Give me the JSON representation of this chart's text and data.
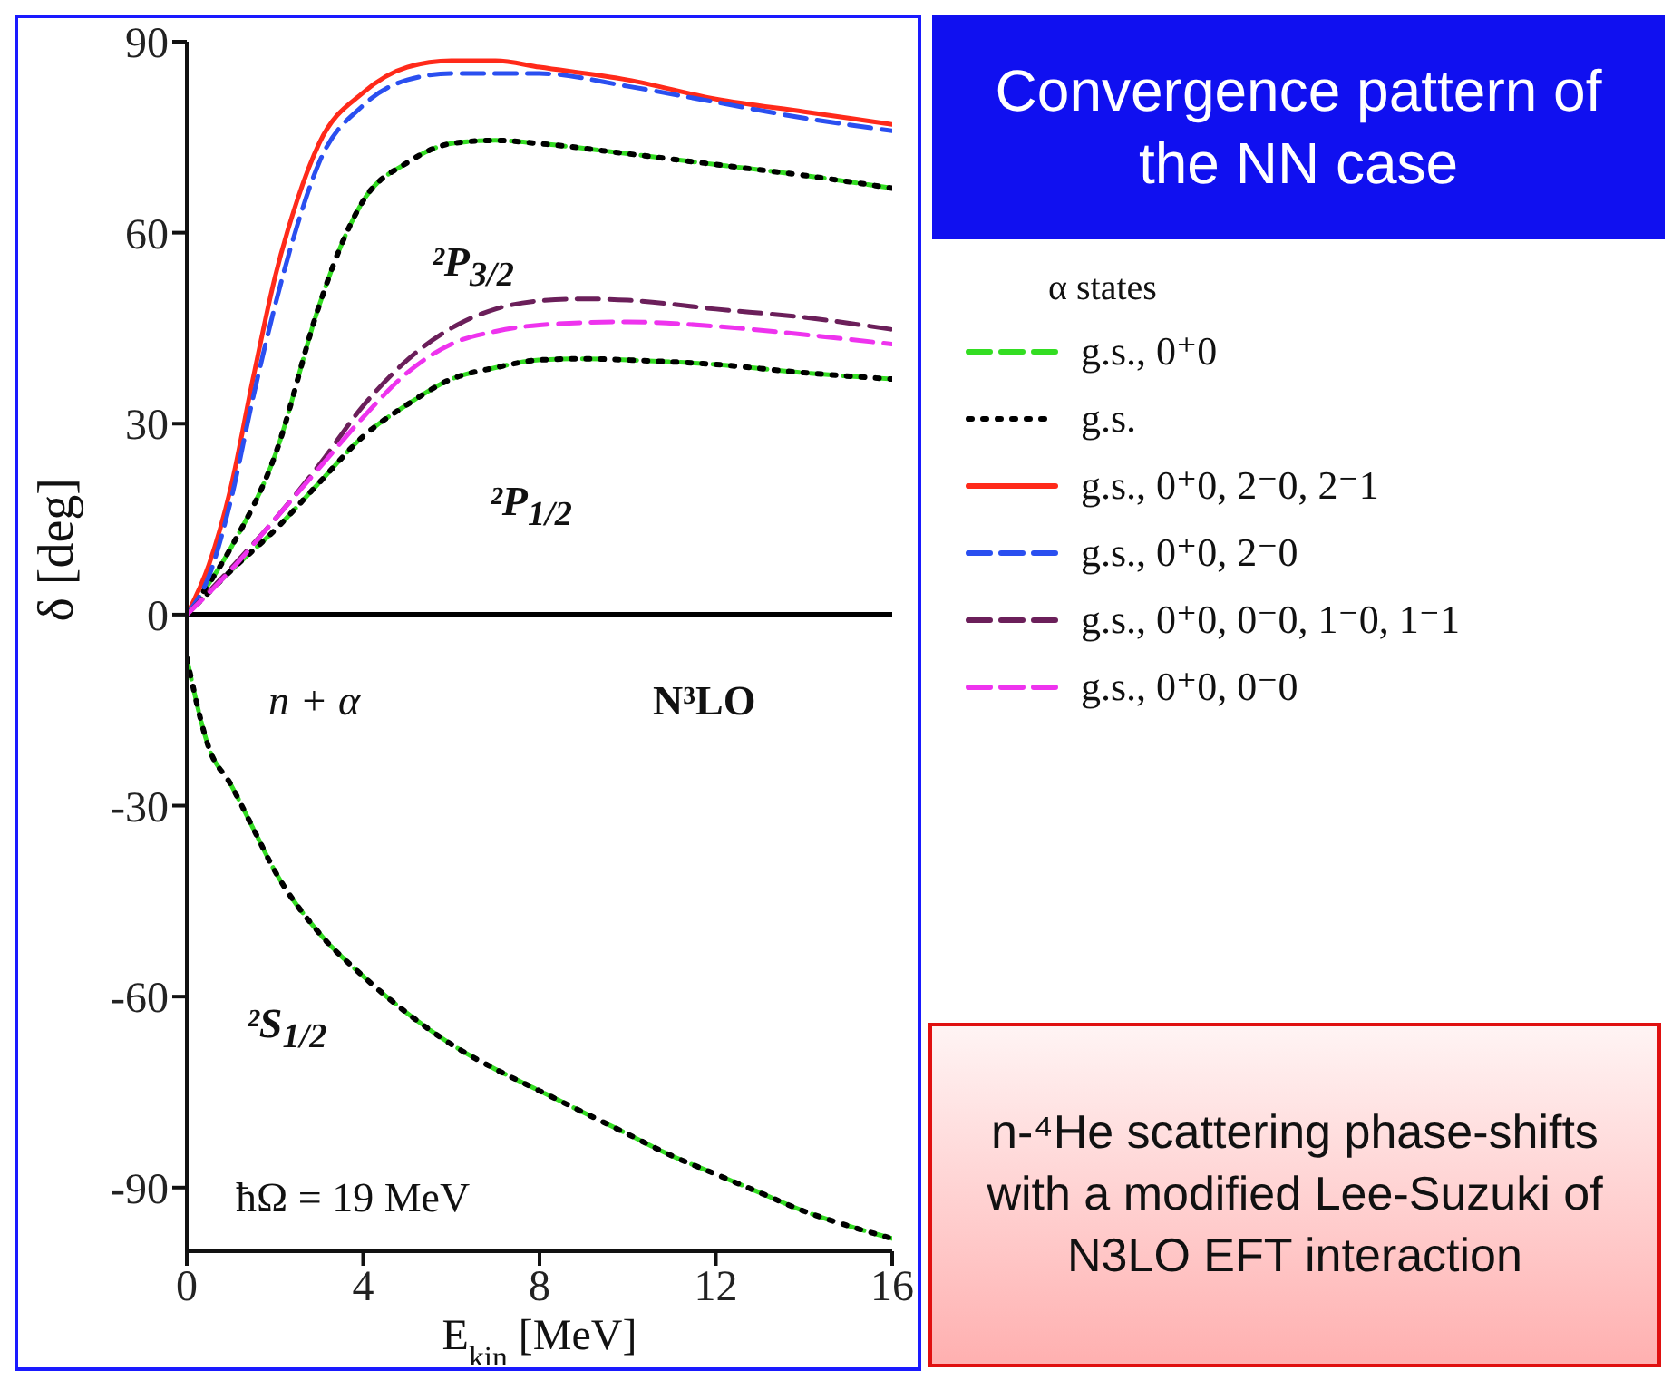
{
  "chart_data": {
    "type": "line",
    "title": "Convergence pattern of the NN case",
    "xlabel": "E$_{kin}$ [MeV]",
    "ylabel": "δ [deg]",
    "legend_title": "α states",
    "legend": "right",
    "xlim": [
      0,
      16
    ],
    "xticks": [
      0,
      4,
      8,
      12,
      16
    ],
    "ylim": [
      -100,
      90
    ],
    "yticks": [
      -90,
      -60,
      -30,
      0,
      30,
      60,
      90
    ],
    "ref_lines": [
      {
        "axis": "y",
        "value": 0,
        "color": "#000000"
      }
    ],
    "series": [
      {
        "name": "g.s., 0⁺0",
        "color": "#33dd22",
        "line_style": "dashed",
        "x": [
          0,
          1,
          2,
          3,
          3.5,
          4,
          5,
          6,
          7,
          8,
          10,
          12,
          14,
          16
        ],
        "values": [
          0,
          10.5,
          25,
          48.5,
          58,
          65,
          71,
          74,
          74.5,
          74,
          72.4,
          70.7,
          69,
          67
        ]
      },
      {
        "color": "#33dd22",
        "line_style": "dashed",
        "x": [
          0,
          1,
          2,
          3,
          4,
          5,
          6,
          7,
          8,
          9,
          10,
          12,
          14,
          16
        ],
        "values": [
          0,
          6.9,
          13.3,
          20.7,
          28,
          33,
          37,
          38.8,
          40,
          40.2,
          40,
          39.3,
          38,
          37
        ]
      },
      {
        "color": "#33dd22",
        "line_style": "dashed",
        "x": [
          0,
          0.5,
          1,
          1.5,
          2,
          3,
          4,
          5,
          6,
          7,
          8,
          9,
          10,
          11,
          12,
          13,
          14,
          15,
          16
        ],
        "values": [
          -6.8,
          -20.9,
          -26.7,
          -33.5,
          -40.3,
          -50,
          -56.8,
          -62.6,
          -67.5,
          -71.4,
          -74.8,
          -78.2,
          -81.6,
          -85,
          -87.9,
          -90.8,
          -93.7,
          -96,
          -98
        ]
      },
      {
        "name": "g.s.",
        "color": "#000000",
        "line_style": "dotted",
        "x": [
          0,
          1,
          2,
          3,
          3.5,
          4,
          5,
          6,
          7,
          8,
          10,
          12,
          14,
          16
        ],
        "values": [
          0,
          10.5,
          25,
          48.5,
          58,
          65,
          71,
          74,
          74.5,
          74,
          72.4,
          70.7,
          69,
          67
        ]
      },
      {
        "color": "#000000",
        "line_style": "dotted",
        "x": [
          0,
          1,
          2,
          3,
          4,
          5,
          6,
          7,
          8,
          9,
          10,
          12,
          14,
          16
        ],
        "values": [
          0,
          6.9,
          13.3,
          20.7,
          28,
          33,
          37,
          38.8,
          40,
          40.2,
          40,
          39.3,
          38,
          37
        ]
      },
      {
        "color": "#000000",
        "line_style": "dotted",
        "x": [
          0,
          0.5,
          1,
          1.5,
          2,
          3,
          4,
          5,
          6,
          7,
          8,
          9,
          10,
          11,
          12,
          13,
          14,
          15,
          16
        ],
        "values": [
          -6.8,
          -20.9,
          -26.7,
          -33.5,
          -40.3,
          -50,
          -56.8,
          -62.6,
          -67.5,
          -71.4,
          -74.8,
          -78.2,
          -81.6,
          -85,
          -87.9,
          -90.8,
          -93.7,
          -96,
          -98
        ]
      },
      {
        "name": "g.s., 0⁺0, 2⁻0, 2⁻1",
        "color": "#ff2a1a",
        "line_style": "solid",
        "x": [
          0,
          0.5,
          1,
          1.5,
          2,
          2.5,
          3,
          4,
          5,
          6,
          7,
          8,
          10,
          12,
          14,
          16
        ],
        "values": [
          0,
          7.8,
          20,
          37,
          53,
          65,
          74,
          82,
          86,
          87,
          87,
          86,
          84,
          81,
          79,
          77
        ]
      },
      {
        "name": "g.s., 0⁺0, 2⁻0",
        "color": "#2a4ff0",
        "line_style": "dashed",
        "x": [
          0,
          0.5,
          1,
          1.5,
          2,
          2.5,
          3,
          4,
          5,
          6,
          8,
          10,
          12,
          14,
          16
        ],
        "values": [
          0,
          6,
          18,
          34,
          48.5,
          61,
          71,
          80,
          84,
          85,
          85,
          83,
          80.5,
          78,
          76
        ]
      },
      {
        "name": "g.s., 0⁺0, 0⁻0, 1⁻0, 1⁻1",
        "color": "#6b1f5a",
        "line_style": "dashed",
        "x": [
          0,
          1,
          2,
          3,
          4,
          5,
          6,
          7,
          8,
          9,
          10,
          12,
          14,
          16
        ],
        "values": [
          0,
          7.3,
          15,
          23.5,
          32.8,
          40,
          45,
          48,
          49.3,
          49.6,
          49.4,
          48,
          46.7,
          44.8
        ]
      },
      {
        "name": "g.s., 0⁺0, 0⁻0",
        "color": "#ee33ee",
        "line_style": "dashed",
        "x": [
          0,
          1,
          2,
          3,
          4,
          5,
          6,
          7,
          8,
          10,
          12,
          14,
          16
        ],
        "values": [
          0,
          7,
          15,
          23,
          31,
          38,
          42.5,
          44.5,
          45.5,
          46,
          45.3,
          44,
          42.5
        ]
      }
    ],
    "annotations": [
      "²P$_{3/2}$",
      "²P$_{1/2}$",
      "²S$_{1/2}$",
      "n + α",
      "N³LO",
      "ħΩ = 19 MeV",
      "n-⁴He scattering phase-shifts with a modified Lee-Suzuki of N3LO EFT interaction"
    ]
  }
}
